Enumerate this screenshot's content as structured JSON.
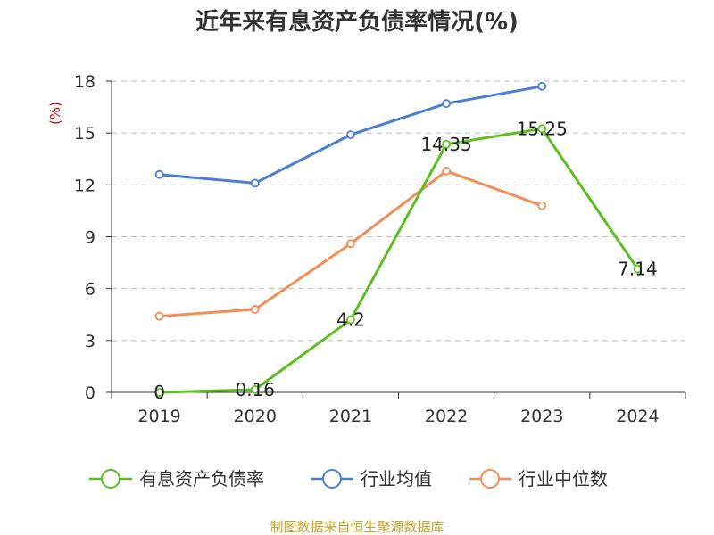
{
  "chart_data": {
    "type": "line",
    "title": "近年来有息资产负债率情况(%)",
    "unit_label": "(%)",
    "categories": [
      "2019",
      "2020",
      "2021",
      "2022",
      "2023",
      "2024"
    ],
    "ylim": [
      0,
      18
    ],
    "yticks": [
      "0",
      "3",
      "6",
      "9",
      "12",
      "15",
      "18"
    ],
    "grid": true,
    "legend_position": "bottom",
    "series": [
      {
        "name": "有息资产负债率",
        "color": "#5cbf1f",
        "values": [
          0,
          0.16,
          4.2,
          14.35,
          15.25,
          7.14
        ],
        "labels": [
          "0",
          "0.16",
          "4.2",
          "14.35",
          "15.25",
          "7.14"
        ]
      },
      {
        "name": "行业均值",
        "color": "#4a7fd6",
        "values": [
          12.6,
          12.1,
          14.9,
          16.7,
          17.7,
          null
        ],
        "labels": null
      },
      {
        "name": "行业中位数",
        "color": "#f58c55",
        "values": [
          4.4,
          4.8,
          8.6,
          12.8,
          10.8,
          null
        ],
        "labels": null
      }
    ]
  },
  "source_text": "制图数据来自恒生聚源数据库"
}
